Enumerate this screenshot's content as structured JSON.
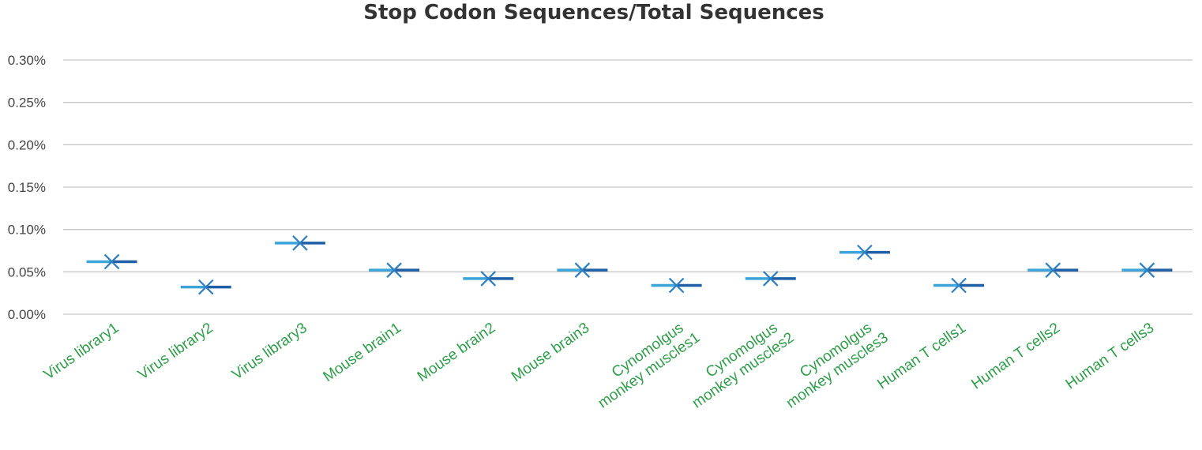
{
  "chart_data": {
    "type": "scatter",
    "title": "Stop Codon Sequences/Total Sequences",
    "xlabel": "",
    "ylabel": "",
    "ylim": [
      0,
      0.3
    ],
    "yticks": [
      "0.00%",
      "0.05%",
      "0.10%",
      "0.15%",
      "0.20%",
      "0.25%",
      "0.30%"
    ],
    "ytick_values": [
      0,
      0.05,
      0.1,
      0.15,
      0.2,
      0.25,
      0.3
    ],
    "grid": true,
    "label_color": "#2e9e4a",
    "marker_color": "#2e7fc1",
    "bar_color_light": "#3ca4d8",
    "bar_color_dark": "#1f5fa8",
    "categories": [
      "Virus library1",
      "Virus library2",
      "Virus library3",
      "Mouse brain1",
      "Mouse brain2",
      "Mouse brain3",
      "Cynomolgus monkey  muscles1",
      "Cynomolgus monkey muscles2",
      "Cynomolgus monkey muscles3",
      "Human T cells1",
      "Human T cells2",
      "Human T cells3"
    ],
    "category_lines": [
      [
        "Virus library1"
      ],
      [
        "Virus library2"
      ],
      [
        "Virus library3"
      ],
      [
        "Mouse brain1"
      ],
      [
        "Mouse brain2"
      ],
      [
        "Mouse brain3"
      ],
      [
        "Cynomolgus",
        "monkey  muscles1"
      ],
      [
        "Cynomolgus",
        "monkey muscles2"
      ],
      [
        "Cynomolgus",
        "monkey muscles3"
      ],
      [
        "Human T cells1"
      ],
      [
        "Human T cells2"
      ],
      [
        "Human T cells3"
      ]
    ],
    "values": [
      0.062,
      0.032,
      0.084,
      0.052,
      0.042,
      0.052,
      0.034,
      0.042,
      0.073,
      0.034,
      0.052,
      0.052
    ]
  }
}
